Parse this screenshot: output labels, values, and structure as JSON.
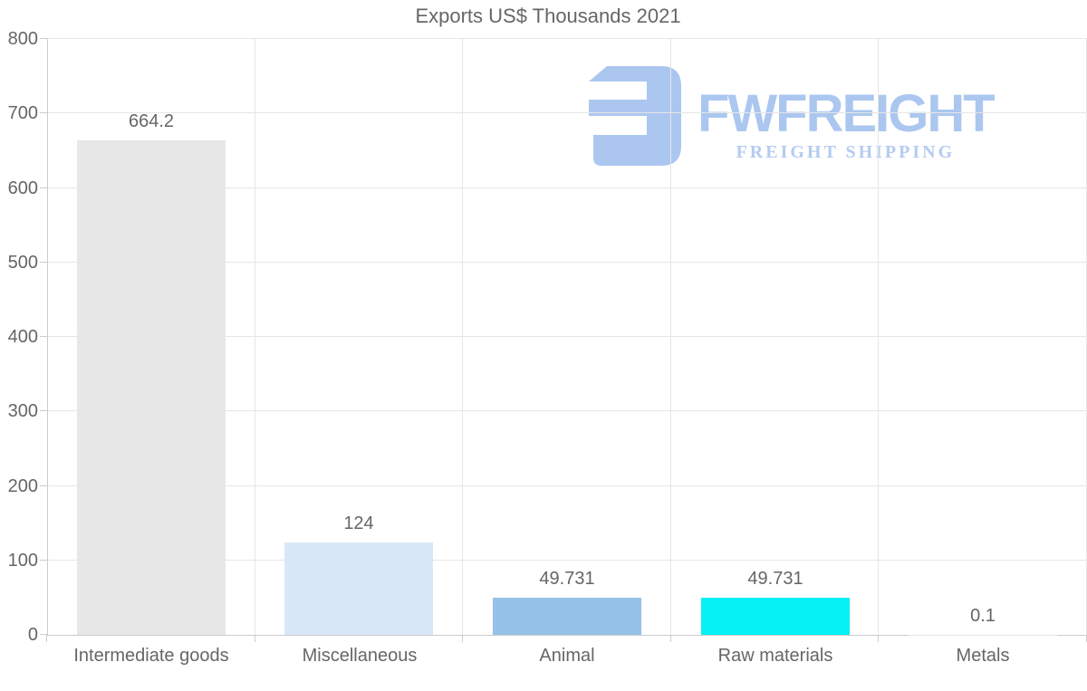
{
  "watermark": {
    "brand": "FWFREIGHT",
    "tagline": "FREIGHT SHIPPING",
    "brand_color": "#abc7f0",
    "tagline_color": "#b5cbf1",
    "icon": "stylized-e-mark-icon",
    "icon_color": "#abc7f0"
  },
  "chart_data": {
    "type": "bar",
    "title": "Exports US$ Thousands 2021",
    "categories": [
      "Intermediate goods",
      "Miscellaneous",
      "Animal",
      "Raw materials",
      "Metals"
    ],
    "values": [
      664.2,
      124,
      49.731,
      49.731,
      0.1
    ],
    "value_labels": [
      "664.2",
      "124",
      "49.731",
      "49.731",
      "0.1"
    ],
    "bar_colors": [
      "#e7e7e7",
      "#d9e8f8",
      "#96c1e9",
      "#06f1f6",
      "#e7e7e7"
    ],
    "xlabel": "",
    "ylabel": "",
    "ylim": [
      0,
      800
    ],
    "yticks": [
      0,
      100,
      200,
      300,
      400,
      500,
      600,
      700,
      800
    ],
    "grid": true,
    "legend": "none",
    "text_color": "#666666",
    "grid_color": "#e6e6e6",
    "axis_color": "#cccccc"
  }
}
